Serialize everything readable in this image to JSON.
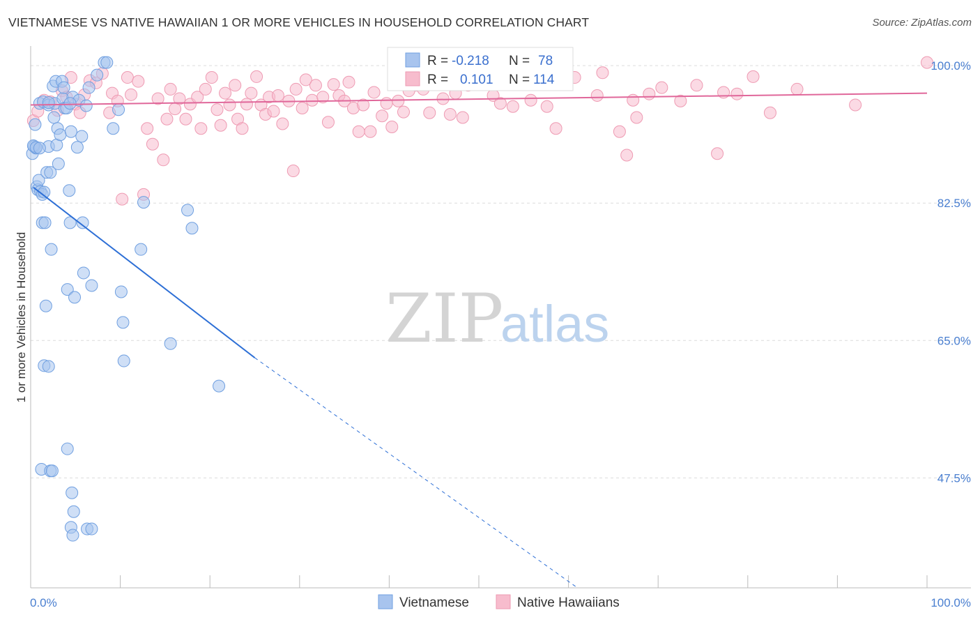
{
  "header": {
    "title": "VIETNAMESE VS NATIVE HAWAIIAN 1 OR MORE VEHICLES IN HOUSEHOLD CORRELATION CHART",
    "source": "Source: ZipAtlas.com"
  },
  "watermark": {
    "zip": "ZIP",
    "atlas": "atlas"
  },
  "legend": {
    "r_label": "R =",
    "n_label": "N =",
    "rows": [
      {
        "name": "Vietnamese",
        "r": "-0.218",
        "n": "78"
      },
      {
        "name": "Native Hawaiians",
        "r": "0.101",
        "n": "114"
      }
    ]
  },
  "colors": {
    "blue_fill": "#a8c4ee",
    "blue_stroke": "#6f9fe0",
    "blue_line": "#2d6fd6",
    "pink_fill": "#f7bccd",
    "pink_stroke": "#ee9ab2",
    "pink_line": "#e0679a"
  },
  "chart_data": {
    "type": "scatter",
    "title": "VIETNAMESE VS NATIVE HAWAIIAN 1 OR MORE VEHICLES IN HOUSEHOLD CORRELATION CHART",
    "xlabel": "",
    "ylabel": "1 or more Vehicles in Household",
    "xlim": [
      0,
      100
    ],
    "ylim": [
      33.5,
      102.5
    ],
    "x_tick_labels": [
      "0.0%",
      "100.0%"
    ],
    "y_ticks": [
      {
        "value": 100.0,
        "label": "100.0%"
      },
      {
        "value": 82.5,
        "label": "82.5%"
      },
      {
        "value": 65.0,
        "label": "65.0%"
      },
      {
        "value": 47.5,
        "label": "47.5%"
      }
    ],
    "legend_position": "top-center",
    "series": [
      {
        "name": "Vietnamese",
        "r": -0.218,
        "n": 78,
        "trend": {
          "x1": 0.3,
          "y1": 84.5,
          "x2": 25.0,
          "y2": 62.8,
          "dashed_to_x": 61.0,
          "dashed_to_y": 33.5
        },
        "points": [
          [
            0.2,
            88.8
          ],
          [
            0.4,
            89.7
          ],
          [
            0.5,
            92.5
          ],
          [
            0.6,
            89.5
          ],
          [
            0.7,
            84.6
          ],
          [
            0.8,
            84.2
          ],
          [
            0.9,
            85.4
          ],
          [
            1.0,
            95.2
          ],
          [
            1.1,
            84.0
          ],
          [
            1.3,
            83.6
          ],
          [
            1.3,
            80.0
          ],
          [
            1.4,
            95.4
          ],
          [
            1.5,
            83.9
          ],
          [
            1.6,
            80.0
          ],
          [
            1.7,
            69.4
          ],
          [
            1.8,
            86.4
          ],
          [
            2.0,
            95.0
          ],
          [
            2.0,
            89.7
          ],
          [
            2.2,
            86.4
          ],
          [
            2.3,
            76.6
          ],
          [
            2.5,
            97.4
          ],
          [
            2.6,
            93.4
          ],
          [
            2.7,
            95.2
          ],
          [
            2.8,
            98.0
          ],
          [
            2.9,
            89.9
          ],
          [
            3.0,
            92.0
          ],
          [
            3.1,
            87.5
          ],
          [
            3.3,
            91.2
          ],
          [
            3.5,
            98.0
          ],
          [
            3.6,
            95.8
          ],
          [
            3.7,
            97.2
          ],
          [
            3.8,
            94.6
          ],
          [
            4.0,
            94.6
          ],
          [
            4.1,
            71.5
          ],
          [
            4.3,
            84.1
          ],
          [
            4.4,
            80.0
          ],
          [
            4.5,
            91.6
          ],
          [
            4.7,
            96.0
          ],
          [
            4.9,
            70.5
          ],
          [
            5.2,
            89.6
          ],
          [
            5.4,
            95.6
          ],
          [
            5.7,
            91.0
          ],
          [
            5.8,
            80.0
          ],
          [
            5.9,
            73.6
          ],
          [
            6.2,
            94.9
          ],
          [
            6.5,
            97.2
          ],
          [
            6.8,
            72.0
          ],
          [
            7.4,
            98.8
          ],
          [
            8.2,
            100.4
          ],
          [
            8.5,
            100.4
          ],
          [
            9.2,
            92.0
          ],
          [
            9.8,
            94.4
          ],
          [
            10.1,
            71.2
          ],
          [
            10.3,
            67.3
          ],
          [
            10.4,
            62.4
          ],
          [
            12.3,
            76.6
          ],
          [
            12.6,
            82.6
          ],
          [
            15.6,
            64.6
          ],
          [
            17.5,
            81.6
          ],
          [
            18.0,
            79.3
          ],
          [
            21.0,
            59.2
          ],
          [
            1.5,
            61.8
          ],
          [
            2.0,
            61.7
          ],
          [
            1.2,
            48.6
          ],
          [
            2.2,
            48.4
          ],
          [
            2.4,
            48.4
          ],
          [
            4.1,
            51.2
          ],
          [
            4.6,
            45.6
          ],
          [
            4.8,
            43.2
          ],
          [
            4.5,
            41.2
          ],
          [
            4.7,
            40.2
          ],
          [
            6.3,
            41.0
          ],
          [
            6.8,
            41.0
          ],
          [
            0.3,
            89.8
          ],
          [
            0.6,
            89.6
          ],
          [
            1.0,
            89.5
          ],
          [
            2.0,
            95.3
          ],
          [
            4.4,
            95.2
          ]
        ]
      },
      {
        "name": "Native Hawaiians",
        "r": 0.101,
        "n": 114,
        "trend": {
          "x1": 0.0,
          "y1": 95.0,
          "x2": 100.0,
          "y2": 96.5
        },
        "points": [
          [
            0.3,
            93.0
          ],
          [
            0.8,
            94.2
          ],
          [
            1.5,
            95.6
          ],
          [
            2.2,
            95.4
          ],
          [
            3.0,
            94.3
          ],
          [
            3.5,
            96.8
          ],
          [
            4.0,
            96.0
          ],
          [
            4.5,
            98.5
          ],
          [
            5.0,
            95.1
          ],
          [
            5.5,
            94.0
          ],
          [
            6.0,
            96.3
          ],
          [
            6.6,
            98.1
          ],
          [
            7.3,
            97.8
          ],
          [
            8.0,
            99.0
          ],
          [
            8.8,
            94.0
          ],
          [
            9.1,
            96.5
          ],
          [
            9.7,
            95.5
          ],
          [
            10.2,
            83.0
          ],
          [
            10.8,
            98.5
          ],
          [
            11.2,
            96.3
          ],
          [
            12.0,
            98.0
          ],
          [
            12.6,
            83.6
          ],
          [
            13.0,
            92.0
          ],
          [
            13.6,
            90.0
          ],
          [
            14.2,
            95.8
          ],
          [
            14.8,
            88.0
          ],
          [
            15.2,
            93.2
          ],
          [
            15.6,
            97.0
          ],
          [
            16.1,
            94.5
          ],
          [
            16.6,
            95.8
          ],
          [
            17.3,
            93.2
          ],
          [
            17.8,
            95.1
          ],
          [
            18.6,
            96.0
          ],
          [
            19.0,
            92.0
          ],
          [
            19.5,
            97.0
          ],
          [
            20.2,
            98.5
          ],
          [
            20.8,
            94.4
          ],
          [
            21.2,
            92.4
          ],
          [
            21.7,
            96.5
          ],
          [
            22.2,
            95.0
          ],
          [
            22.8,
            97.5
          ],
          [
            23.1,
            93.2
          ],
          [
            23.6,
            92.0
          ],
          [
            24.1,
            95.1
          ],
          [
            24.6,
            96.5
          ],
          [
            25.2,
            98.6
          ],
          [
            25.7,
            95.0
          ],
          [
            26.2,
            93.8
          ],
          [
            26.6,
            96.0
          ],
          [
            27.1,
            94.2
          ],
          [
            27.6,
            96.2
          ],
          [
            28.1,
            92.6
          ],
          [
            28.8,
            95.5
          ],
          [
            29.3,
            86.6
          ],
          [
            29.6,
            97.0
          ],
          [
            30.3,
            94.6
          ],
          [
            30.7,
            98.2
          ],
          [
            31.4,
            95.6
          ],
          [
            31.8,
            97.5
          ],
          [
            32.6,
            96.0
          ],
          [
            33.2,
            92.8
          ],
          [
            33.8,
            97.6
          ],
          [
            34.4,
            96.2
          ],
          [
            35.0,
            95.5
          ],
          [
            35.5,
            97.9
          ],
          [
            36.0,
            94.6
          ],
          [
            36.6,
            91.6
          ],
          [
            37.1,
            95.0
          ],
          [
            37.9,
            91.6
          ],
          [
            38.3,
            96.6
          ],
          [
            39.2,
            93.6
          ],
          [
            39.7,
            95.2
          ],
          [
            40.3,
            92.2
          ],
          [
            41.0,
            95.5
          ],
          [
            41.6,
            94.1
          ],
          [
            42.2,
            96.8
          ],
          [
            43.0,
            97.5
          ],
          [
            43.8,
            97.0
          ],
          [
            44.5,
            94.0
          ],
          [
            45.3,
            98.2
          ],
          [
            46.0,
            95.8
          ],
          [
            46.8,
            93.8
          ],
          [
            47.4,
            96.5
          ],
          [
            48.2,
            93.4
          ],
          [
            48.8,
            97.5
          ],
          [
            49.6,
            97.8
          ],
          [
            50.8,
            98.2
          ],
          [
            51.6,
            96.2
          ],
          [
            52.4,
            95.2
          ],
          [
            53.8,
            94.8
          ],
          [
            55.8,
            95.6
          ],
          [
            57.6,
            94.8
          ],
          [
            58.6,
            92.0
          ],
          [
            60.7,
            98.5
          ],
          [
            63.2,
            96.2
          ],
          [
            63.8,
            99.1
          ],
          [
            65.7,
            91.6
          ],
          [
            66.5,
            88.6
          ],
          [
            67.2,
            95.6
          ],
          [
            67.6,
            93.4
          ],
          [
            69.0,
            96.4
          ],
          [
            70.4,
            97.2
          ],
          [
            72.5,
            95.5
          ],
          [
            74.3,
            97.5
          ],
          [
            76.6,
            88.8
          ],
          [
            77.3,
            96.6
          ],
          [
            78.8,
            96.4
          ],
          [
            80.6,
            98.6
          ],
          [
            82.5,
            94.0
          ],
          [
            85.5,
            97.0
          ],
          [
            92.0,
            95.0
          ],
          [
            100.0,
            100.4
          ]
        ]
      }
    ]
  }
}
